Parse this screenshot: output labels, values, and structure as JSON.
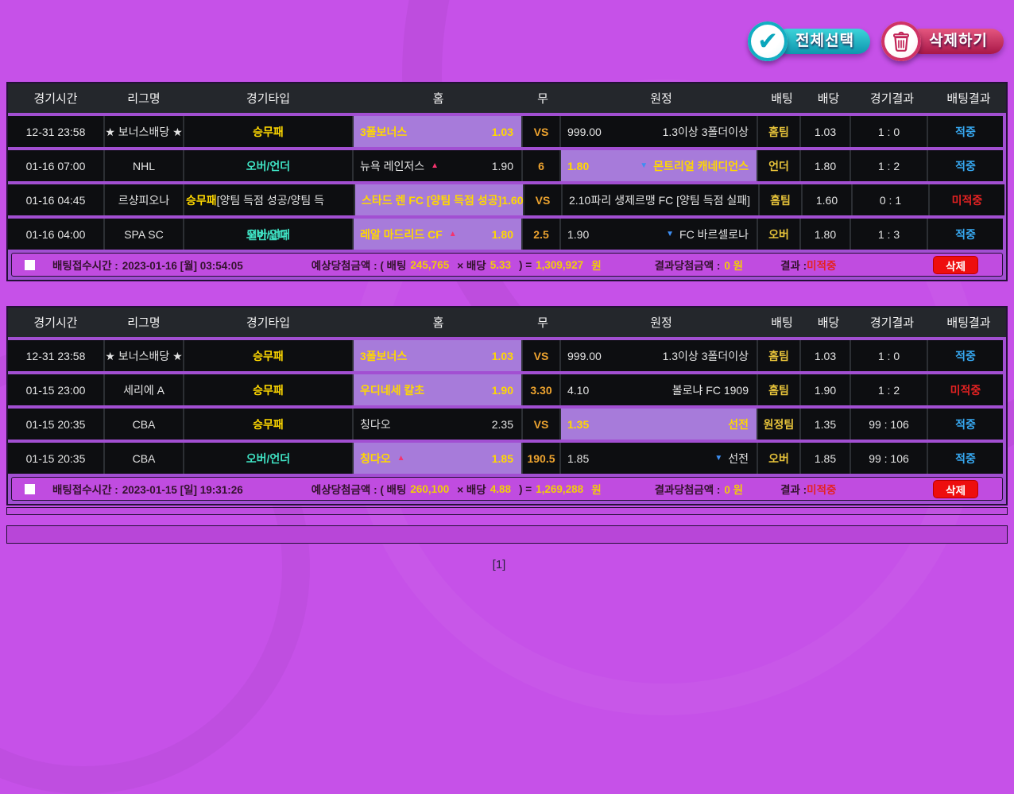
{
  "toolbar": {
    "select_all_label": "전체선택",
    "delete_label": "삭제하기"
  },
  "headers": [
    "경기시간",
    "리그명",
    "경기타입",
    "홈",
    "무",
    "원정",
    "배팅",
    "배당",
    "경기결과",
    "배팅결과"
  ],
  "colors": {
    "page_purple": "#c651e8",
    "highlight_purple": "#a77bda",
    "cell_black": "#0d0e11",
    "header_charcoal": "#24272c",
    "pick_yellow": "#ffd800",
    "type_cyan": "#3fe3c4",
    "draw_orange": "#eda32f",
    "hit_blue": "#37a9f2",
    "miss_red": "#e42222",
    "button_teal": "#0e96ae",
    "button_crimson": "#a81747",
    "delete_red": "#ee0e0e"
  },
  "slips": [
    {
      "rows": [
        {
          "time": "12-31 23:58",
          "league": "★ 보너스배당 ★",
          "type": {
            "text": "승무패",
            "style": "yellow"
          },
          "home": {
            "name": "3폴보너스",
            "odds": "1.03",
            "highlight": true
          },
          "draw": "VS",
          "away": {
            "odds": "999.00",
            "name": "1.3이상 3폴더이상",
            "highlight": false
          },
          "bet": "홈팀",
          "odds": "1.03",
          "score": "1 : 0",
          "result": {
            "text": "적중",
            "hit": true
          }
        },
        {
          "time": "01-16 07:00",
          "league": "NHL",
          "type": {
            "text": "오버/언더",
            "style": "cyan"
          },
          "home": {
            "name": "뉴욕 레인저스",
            "odds": "1.90",
            "trend": "up",
            "highlight": false
          },
          "draw": "6",
          "away": {
            "odds": "1.80",
            "name": "몬트리얼 캐네디언스",
            "trend": "down",
            "highlight": true
          },
          "bet": "언더",
          "odds": "1.80",
          "score": "1 : 2",
          "result": {
            "text": "적중",
            "hit": true
          }
        },
        {
          "time": "01-16 04:45",
          "league": "르샹피오나",
          "type": {
            "text": "승무패",
            "style": "yellow"
          },
          "type_suffix": " [양팀 득점 성공/양팀 득",
          "home": {
            "name": "스타드 렌 FC [양팀 득점 성공]",
            "odds": "1.60",
            "highlight": true
          },
          "draw": "VS",
          "away": {
            "odds": "2.10",
            "name": "파리 생제르맹 FC [양팀 득점 실패]",
            "highlight": false
          },
          "bet": "홈팀",
          "odds": "1.60",
          "score": "0 : 1",
          "result": {
            "text": "미적중",
            "hit": false
          }
        },
        {
          "time": "01-16 04:00",
          "league": "SPA SC",
          "type": {
            "text": "오버/언더",
            "style": "cyan"
          },
          "type_overlay": "절반실패",
          "home": {
            "name": "레알 마드리드 CF",
            "odds": "1.80",
            "trend": "up",
            "highlight": true
          },
          "draw": "2.5",
          "away": {
            "odds": "1.90",
            "name": "FC 바르셀로나",
            "trend": "down",
            "highlight": false
          },
          "bet": "오버",
          "odds": "1.80",
          "score": "1 : 3",
          "result": {
            "text": "적중",
            "hit": true
          }
        }
      ],
      "summary": {
        "receipt_label": "배팅접수시간 :",
        "receipt_time": "2023-01-16 [월] 03:54:05",
        "expected_prefix": "예상당첨금액 : ( 배팅",
        "bet_amount": "245,765",
        "times_label": "× 배당",
        "odds": "5.33",
        "equals_label": ") =",
        "payout": "1,309,927",
        "won_label": "원",
        "result_amount_label": "결과당첨금액 :",
        "result_amount": "0 원",
        "result_label": "결과 :",
        "result": "미적중",
        "delete_label": "삭제"
      }
    },
    {
      "rows": [
        {
          "time": "12-31 23:58",
          "league": "★ 보너스배당 ★",
          "type": {
            "text": "승무패",
            "style": "yellow"
          },
          "home": {
            "name": "3폴보너스",
            "odds": "1.03",
            "highlight": true
          },
          "draw": "VS",
          "away": {
            "odds": "999.00",
            "name": "1.3이상 3폴더이상",
            "highlight": false
          },
          "bet": "홈팀",
          "odds": "1.03",
          "score": "1 : 0",
          "result": {
            "text": "적중",
            "hit": true
          }
        },
        {
          "time": "01-15 23:00",
          "league": "세리에 A",
          "type": {
            "text": "승무패",
            "style": "yellow"
          },
          "home": {
            "name": "우디네세 칼초",
            "odds": "1.90",
            "highlight": true
          },
          "draw": "3.30",
          "away": {
            "odds": "4.10",
            "name": "볼로냐 FC 1909",
            "highlight": false
          },
          "bet": "홈팀",
          "odds": "1.90",
          "score": "1 : 2",
          "result": {
            "text": "미적중",
            "hit": false
          }
        },
        {
          "time": "01-15 20:35",
          "league": "CBA",
          "type": {
            "text": "승무패",
            "style": "yellow"
          },
          "home": {
            "name": "칭다오",
            "odds": "2.35",
            "highlight": false
          },
          "draw": "VS",
          "away": {
            "odds": "1.35",
            "name": "선전",
            "highlight": true
          },
          "bet": "원정팀",
          "odds": "1.35",
          "score": "99 : 106",
          "result": {
            "text": "적중",
            "hit": true
          }
        },
        {
          "time": "01-15 20:35",
          "league": "CBA",
          "type": {
            "text": "오버/언더",
            "style": "cyan"
          },
          "home": {
            "name": "칭다오",
            "odds": "1.85",
            "trend": "up",
            "highlight": true
          },
          "draw": "190.5",
          "away": {
            "odds": "1.85",
            "name": "선전",
            "trend": "down",
            "highlight": false
          },
          "bet": "오버",
          "odds": "1.85",
          "score": "99 : 106",
          "result": {
            "text": "적중",
            "hit": true
          }
        }
      ],
      "summary": {
        "receipt_label": "배팅접수시간 :",
        "receipt_time": "2023-01-15 [일] 19:31:26",
        "expected_prefix": "예상당첨금액 : ( 배팅",
        "bet_amount": "260,100",
        "times_label": "× 배당",
        "odds": "4.88",
        "equals_label": ") =",
        "payout": "1,269,288",
        "won_label": "원",
        "result_amount_label": "결과당첨금액 :",
        "result_amount": "0 원",
        "result_label": "결과 :",
        "result": "미적중",
        "delete_label": "삭제"
      }
    }
  ],
  "pagination": "[1]"
}
